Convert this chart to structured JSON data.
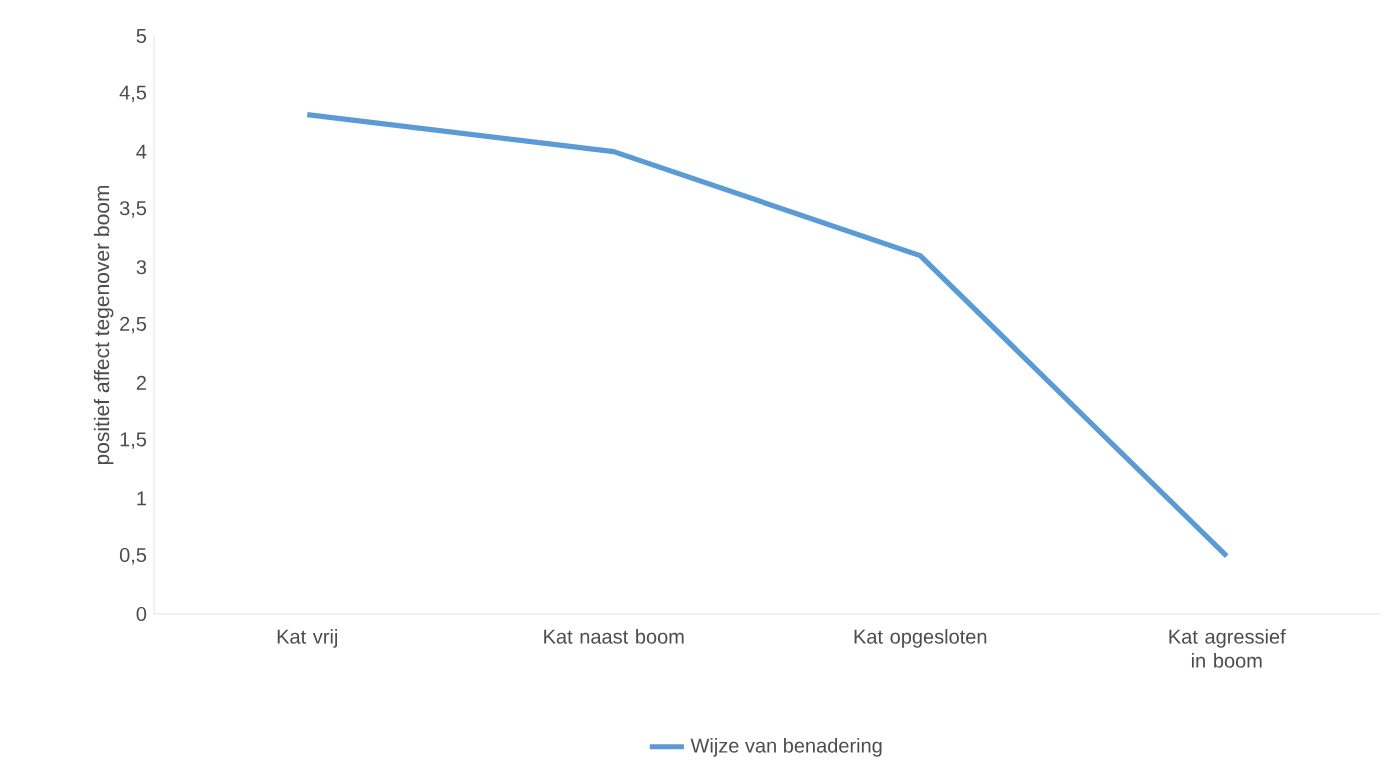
{
  "chart_data": {
    "type": "line",
    "ylabel": "positief affect tegenover boom",
    "categories": [
      "Kat vrij",
      "Kat naast boom",
      "Kat opgesloten",
      "Kat agressief in boom"
    ],
    "series": [
      {
        "name": "Wijze van benadering",
        "color": "#5b9bd5",
        "values": [
          4.32,
          4.0,
          3.1,
          0.5
        ]
      }
    ],
    "ylim": [
      0,
      5
    ],
    "yticks": [
      0,
      {
        "value": 0.5,
        "label": "0,5"
      },
      1,
      {
        "value": 1.5,
        "label": "1,5"
      },
      2,
      {
        "value": 2.5,
        "label": "2,5"
      },
      3,
      {
        "value": 3.5,
        "label": "3,5"
      },
      4,
      {
        "value": 4.5,
        "label": "4,5"
      },
      5
    ],
    "grid": false,
    "legend": "bottom",
    "marker": "none",
    "line_style": "solid"
  }
}
